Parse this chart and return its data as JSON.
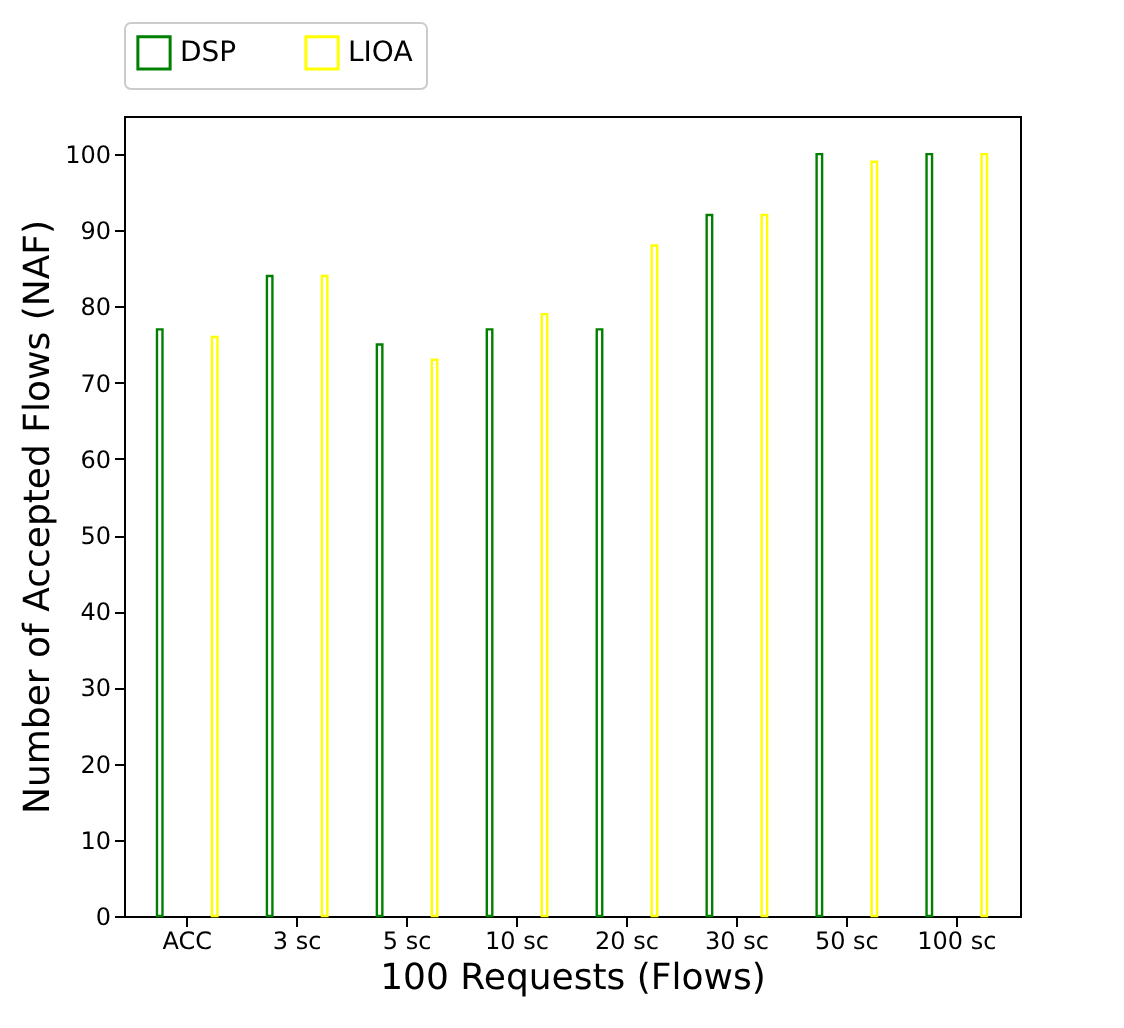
{
  "chart_data": {
    "type": "bar",
    "xlabel": "100 Requests (Flows)",
    "ylabel": "Number of Accepted Flows (NAF)",
    "categories": [
      "ACC",
      "3 sc",
      "5 sc",
      "10 sc",
      "20 sc",
      "30 sc",
      "50 sc",
      "100 sc"
    ],
    "series": [
      {
        "name": "DSP",
        "color": "#008000",
        "values": [
          77,
          84,
          75,
          77,
          77,
          92,
          100,
          100
        ]
      },
      {
        "name": "LIOA",
        "color": "#ffff00",
        "values": [
          76,
          84,
          73,
          79,
          88,
          92,
          99,
          100
        ]
      }
    ],
    "ylim": [
      0,
      105
    ],
    "yticks": [
      0,
      10,
      20,
      30,
      40,
      50,
      60,
      70,
      80,
      90,
      100
    ],
    "grid": false,
    "legend": "top"
  }
}
